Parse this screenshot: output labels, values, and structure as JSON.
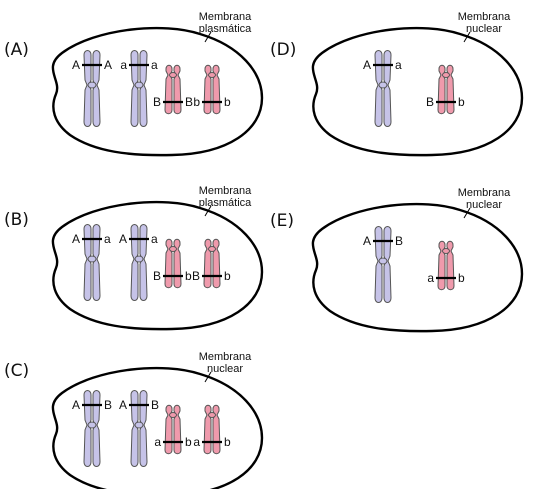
{
  "colors": {
    "large_chromosome": "#c6c3e8",
    "small_chromosome": "#ef9aac",
    "outline": "#000000"
  },
  "panels": [
    {
      "label": "(A)",
      "membrane_label": [
        "Membrana",
        "plasmática"
      ],
      "chromosomes": [
        {
          "kind": "large",
          "left": "A",
          "right": "A"
        },
        {
          "kind": "large",
          "left": "a",
          "right": "a"
        },
        {
          "kind": "small",
          "left": "B",
          "right": "B"
        },
        {
          "kind": "small",
          "left": "b",
          "right": "b"
        }
      ]
    },
    {
      "label": "(B)",
      "membrane_label": [
        "Membrana",
        "plasmática"
      ],
      "chromosomes": [
        {
          "kind": "large",
          "left": "A",
          "right": "a"
        },
        {
          "kind": "large",
          "left": "A",
          "right": "a"
        },
        {
          "kind": "small",
          "left": "B",
          "right": "b"
        },
        {
          "kind": "small",
          "left": "B",
          "right": "b"
        }
      ]
    },
    {
      "label": "(C)",
      "membrane_label": [
        "Membrana",
        "nuclear"
      ],
      "chromosomes": [
        {
          "kind": "large",
          "left": "A",
          "right": "B"
        },
        {
          "kind": "large",
          "left": "A",
          "right": "B"
        },
        {
          "kind": "small",
          "left": "a",
          "right": "b"
        },
        {
          "kind": "small",
          "left": "a",
          "right": "b"
        }
      ]
    },
    {
      "label": "(D)",
      "membrane_label": [
        "Membrana",
        "nuclear"
      ],
      "chromosomes": [
        {
          "kind": "large",
          "left": "A",
          "right": "a"
        },
        {
          "kind": "small",
          "left": "B",
          "right": "b"
        }
      ]
    },
    {
      "label": "(E)",
      "membrane_label": [
        "Membrana",
        "nuclear"
      ],
      "chromosomes": [
        {
          "kind": "large",
          "left": "A",
          "right": "B"
        },
        {
          "kind": "small",
          "left": "a",
          "right": "b"
        }
      ]
    }
  ]
}
